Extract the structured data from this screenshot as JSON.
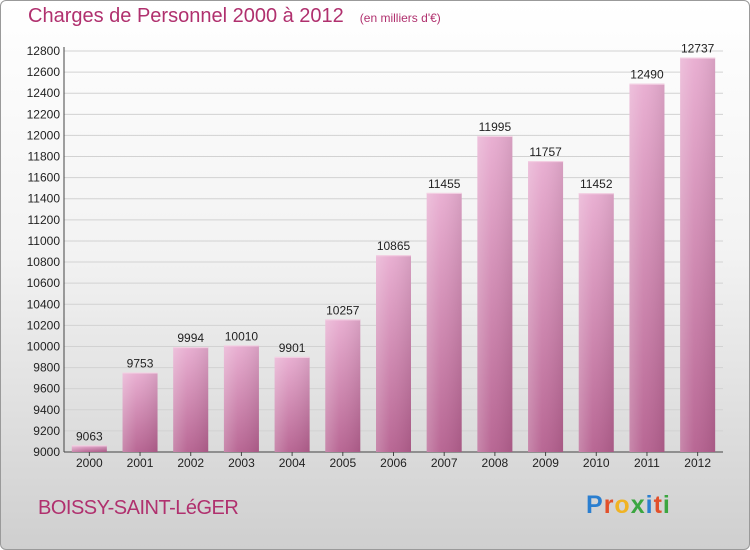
{
  "header": {
    "title": "Charges de Personnel 2000 à 2012",
    "subtitle": "(en milliers d'€)"
  },
  "footer": {
    "place": "BOISSY-SAINT-LéGER",
    "logo_letters": [
      {
        "ch": "P",
        "color": "#2b7fd0"
      },
      {
        "ch": "r",
        "color": "#e2502a"
      },
      {
        "ch": "o",
        "color": "#f0b323"
      },
      {
        "ch": "x",
        "color": "#3ba640"
      },
      {
        "ch": "i",
        "color": "#2b7fd0"
      },
      {
        "ch": "t",
        "color": "#e2502a"
      },
      {
        "ch": "i",
        "color": "#3ba640"
      }
    ]
  },
  "chart_data": {
    "type": "bar",
    "categories": [
      "2000",
      "2001",
      "2002",
      "2003",
      "2004",
      "2005",
      "2006",
      "2007",
      "2008",
      "2009",
      "2010",
      "2011",
      "2012"
    ],
    "values": [
      9063,
      9753,
      9994,
      10010,
      9901,
      10257,
      10865,
      11455,
      11995,
      11757,
      11452,
      12490,
      12737
    ],
    "ylim": [
      9000,
      12800
    ],
    "yticks": [
      9000,
      9200,
      9400,
      9600,
      9800,
      10000,
      10200,
      10400,
      10600,
      10800,
      11000,
      11200,
      11400,
      11600,
      11800,
      12000,
      12200,
      12400,
      12600,
      12800
    ],
    "grid": true,
    "colors": {
      "bar_light": "#e8acd0",
      "bar_dark": "#b5608f",
      "grid": "#d2d2d2",
      "text": "#222222"
    }
  }
}
